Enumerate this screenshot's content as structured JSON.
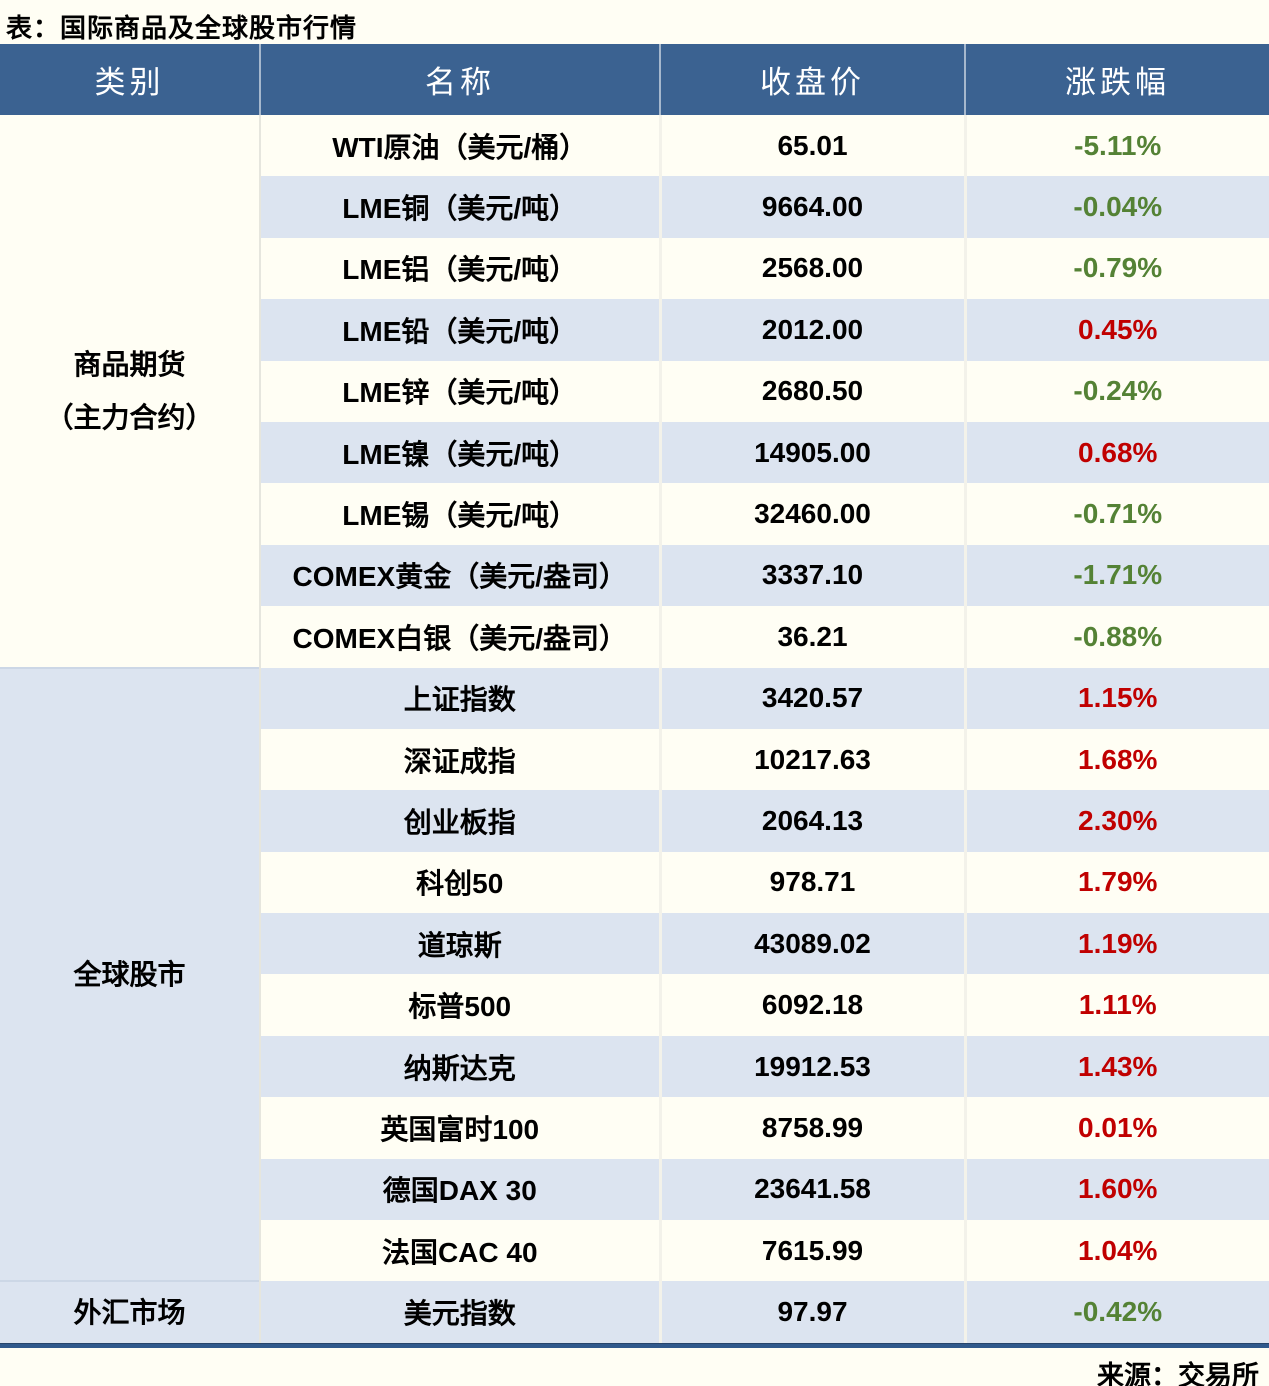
{
  "title": "表：国际商品及全球股市行情",
  "source": "来源：交易所",
  "chart_data": {
    "type": "table",
    "columns": [
      "类别",
      "名称",
      "收盘价",
      "涨跌幅"
    ],
    "sections": [
      {
        "category_lines": [
          "商品期货",
          "（主力合约）"
        ],
        "rows": [
          {
            "name": "WTI原油（美元/桶）",
            "close": "65.01",
            "change": "-5.11%",
            "direction": "down"
          },
          {
            "name": "LME铜（美元/吨）",
            "close": "9664.00",
            "change": "-0.04%",
            "direction": "down"
          },
          {
            "name": "LME铝（美元/吨）",
            "close": "2568.00",
            "change": "-0.79%",
            "direction": "down"
          },
          {
            "name": "LME铅（美元/吨）",
            "close": "2012.00",
            "change": "0.45%",
            "direction": "up"
          },
          {
            "name": "LME锌（美元/吨）",
            "close": "2680.50",
            "change": "-0.24%",
            "direction": "down"
          },
          {
            "name": "LME镍（美元/吨）",
            "close": "14905.00",
            "change": "0.68%",
            "direction": "up"
          },
          {
            "name": "LME锡（美元/吨）",
            "close": "32460.00",
            "change": "-0.71%",
            "direction": "down"
          },
          {
            "name": "COMEX黄金（美元/盎司）",
            "close": "3337.10",
            "change": "-1.71%",
            "direction": "down"
          },
          {
            "name": "COMEX白银（美元/盎司）",
            "close": "36.21",
            "change": "-0.88%",
            "direction": "down"
          }
        ]
      },
      {
        "category_lines": [
          "全球股市"
        ],
        "rows": [
          {
            "name": "上证指数",
            "close": "3420.57",
            "change": "1.15%",
            "direction": "up"
          },
          {
            "name": "深证成指",
            "close": "10217.63",
            "change": "1.68%",
            "direction": "up"
          },
          {
            "name": "创业板指",
            "close": "2064.13",
            "change": "2.30%",
            "direction": "up"
          },
          {
            "name": "科创50",
            "close": "978.71",
            "change": "1.79%",
            "direction": "up"
          },
          {
            "name": "道琼斯",
            "close": "43089.02",
            "change": "1.19%",
            "direction": "up"
          },
          {
            "name": "标普500",
            "close": "6092.18",
            "change": "1.11%",
            "direction": "up"
          },
          {
            "name": "纳斯达克",
            "close": "19912.53",
            "change": "1.43%",
            "direction": "up"
          },
          {
            "name": "英国富时100",
            "close": "8758.99",
            "change": "0.01%",
            "direction": "up"
          },
          {
            "name": "德国DAX 30",
            "close": "23641.58",
            "change": "1.60%",
            "direction": "up"
          },
          {
            "name": "法国CAC 40",
            "close": "7615.99",
            "change": "1.04%",
            "direction": "up"
          }
        ]
      },
      {
        "category_lines": [
          "外汇市场"
        ],
        "rows": [
          {
            "name": "美元指数",
            "close": "97.97",
            "change": "-0.42%",
            "direction": "down"
          }
        ]
      }
    ]
  },
  "colors": {
    "page_bg": "#fffef4",
    "header_bg": "#3b6291",
    "alt_row_bg": "#dce4f0",
    "positive_red": "#c00000",
    "negative_green": "#548235",
    "table_bottom_border": "#30598c"
  }
}
